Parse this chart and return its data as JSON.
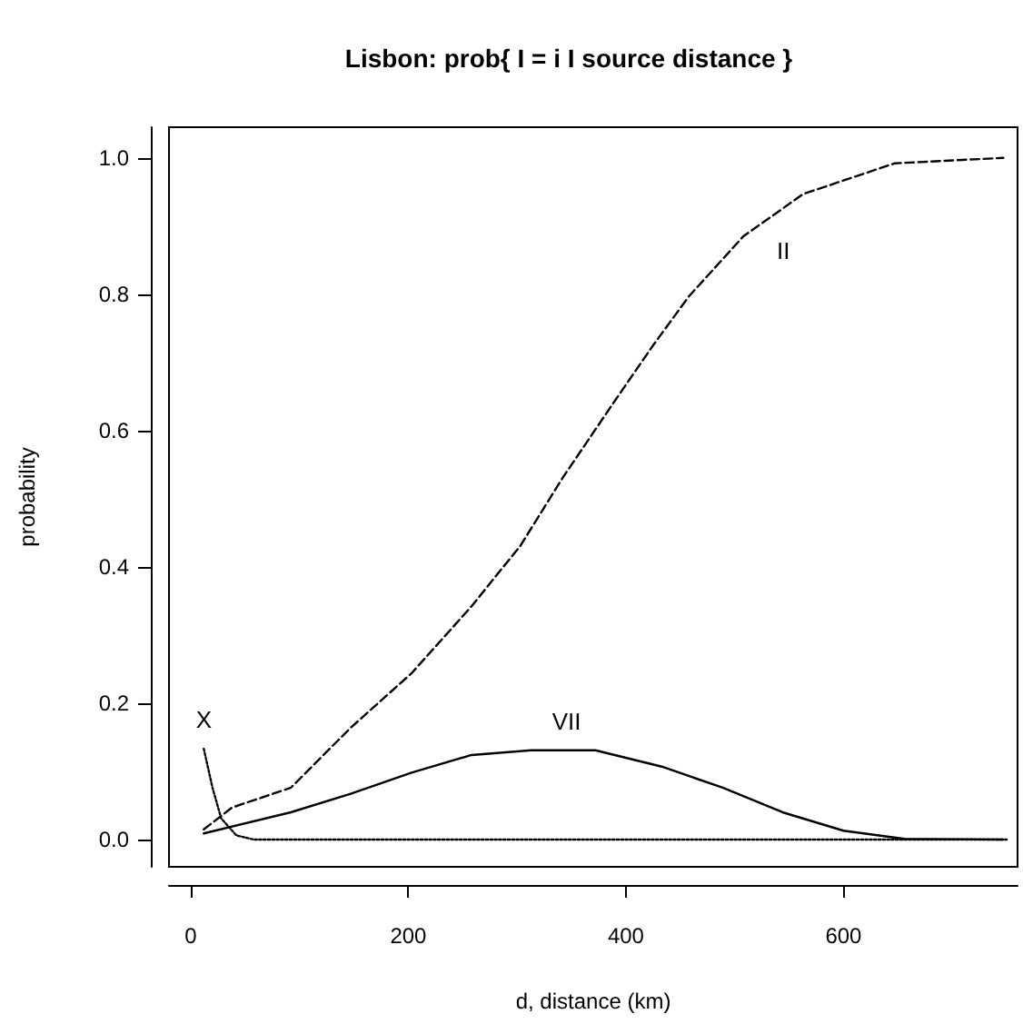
{
  "chart_data": {
    "type": "line",
    "title": "Lisbon: prob{ I = i I source distance }",
    "xlabel": "d, distance (km)",
    "ylabel": "probability",
    "xlim": [
      -20,
      760
    ],
    "ylim": [
      -0.04,
      1.045
    ],
    "xticks": [
      0,
      200,
      400,
      600
    ],
    "yticks": [
      {
        "value": 0,
        "label": "0.0"
      },
      {
        "value": 0.2,
        "label": "0.2"
      },
      {
        "value": 0.4,
        "label": "0.4"
      },
      {
        "value": 0.6,
        "label": "0.6"
      },
      {
        "value": 0.8,
        "label": "0.8"
      },
      {
        "value": 1,
        "label": "1.0"
      }
    ],
    "grid": false,
    "legend": false,
    "marker": "none",
    "series": [
      {
        "name": "II",
        "color": "#000000",
        "line_style": "dashed",
        "x": [
          12,
          38,
          92,
          147,
          203,
          258,
          303,
          342,
          387,
          425,
          458,
          508,
          563,
          647,
          747
        ],
        "values": [
          0.015,
          0.047,
          0.076,
          0.164,
          0.244,
          0.342,
          0.431,
          0.531,
          0.637,
          0.725,
          0.797,
          0.885,
          0.947,
          0.992,
          1.0
        ]
      },
      {
        "name": "VII",
        "color": "#000000",
        "line_style": "solid",
        "x": [
          12,
          92,
          147,
          203,
          258,
          313,
          372,
          433,
          489,
          544,
          600,
          656,
          747
        ],
        "values": [
          0.009,
          0.04,
          0.067,
          0.098,
          0.124,
          0.131,
          0.131,
          0.107,
          0.076,
          0.04,
          0.013,
          0.001,
          0
        ]
      },
      {
        "name": "X",
        "color": "#000000",
        "line_style": "dotted",
        "x": [
          12,
          20,
          28,
          42,
          58,
          750
        ],
        "values": [
          0.133,
          0.076,
          0.031,
          0.006,
          0,
          0
        ]
      }
    ]
  }
}
